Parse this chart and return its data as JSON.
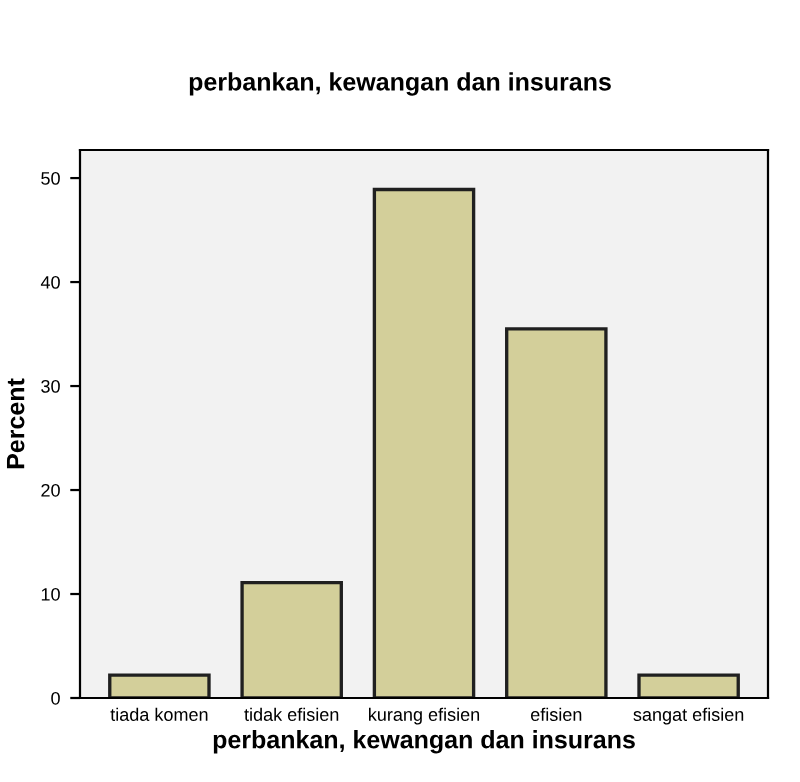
{
  "chart_data": {
    "type": "bar",
    "title": "perbankan, kewangan dan insurans",
    "xlabel": "perbankan, kewangan dan insurans",
    "ylabel": "Percent",
    "categories": [
      "tiada komen",
      "tidak efisien",
      "kurang efisien",
      "efisien",
      "sangat efisien"
    ],
    "values": [
      2.2,
      11.1,
      48.9,
      35.5,
      2.2
    ],
    "color": "#d3cf9a",
    "ylim": [
      0,
      52.7
    ],
    "yticks": [
      0,
      10,
      20,
      30,
      40,
      50
    ],
    "grid": false,
    "legend": false
  }
}
